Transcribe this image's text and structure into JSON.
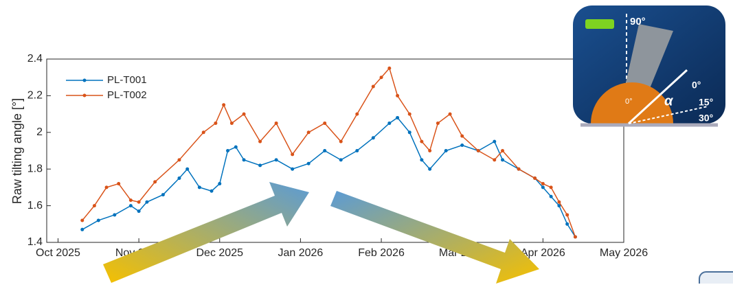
{
  "chart_data": {
    "type": "line",
    "ylabel": "Raw tilting angle [°]",
    "xlim": [
      -0.14,
      7
    ],
    "xticks": [
      {
        "value": 0,
        "label": "Oct 2025"
      },
      {
        "value": 1,
        "label": "Nov 2025"
      },
      {
        "value": 2,
        "label": "Dec 2025"
      },
      {
        "value": 3,
        "label": "Jan 2026"
      },
      {
        "value": 4,
        "label": "Feb 2026"
      },
      {
        "value": 5,
        "label": "Mar 2026"
      },
      {
        "value": 6,
        "label": "Apr 2026"
      },
      {
        "value": 7,
        "label": "May 2026"
      }
    ],
    "ylim": [
      1.4,
      2.4
    ],
    "yticks": [
      1.4,
      1.6,
      1.8,
      2,
      2.2,
      2.4
    ],
    "legend": "upper left",
    "series": [
      {
        "name": "PL-T001",
        "color": "#0072bd",
        "x": [
          0.3,
          0.5,
          0.7,
          0.9,
          1.0,
          1.1,
          1.3,
          1.5,
          1.6,
          1.75,
          1.9,
          2.0,
          2.1,
          2.2,
          2.3,
          2.5,
          2.7,
          2.9,
          3.1,
          3.3,
          3.5,
          3.7,
          3.9,
          4.1,
          4.2,
          4.35,
          4.5,
          4.6,
          4.8,
          5.0,
          5.2,
          5.4,
          5.5,
          5.7,
          5.9,
          6.0,
          6.1,
          6.2,
          6.3,
          6.4
        ],
        "values": [
          1.47,
          1.52,
          1.55,
          1.6,
          1.57,
          1.62,
          1.66,
          1.75,
          1.8,
          1.7,
          1.68,
          1.72,
          1.9,
          1.92,
          1.85,
          1.82,
          1.85,
          1.8,
          1.83,
          1.9,
          1.85,
          1.9,
          1.97,
          2.05,
          2.08,
          2.0,
          1.85,
          1.8,
          1.9,
          1.93,
          1.9,
          1.95,
          1.85,
          1.8,
          1.75,
          1.7,
          1.65,
          1.6,
          1.5,
          1.43
        ]
      },
      {
        "name": "PL-T002",
        "color": "#d95319",
        "x": [
          0.3,
          0.45,
          0.6,
          0.75,
          0.9,
          1.0,
          1.2,
          1.5,
          1.8,
          1.95,
          2.05,
          2.15,
          2.3,
          2.5,
          2.7,
          2.9,
          3.1,
          3.3,
          3.5,
          3.7,
          3.9,
          4.0,
          4.1,
          4.2,
          4.35,
          4.5,
          4.6,
          4.7,
          4.85,
          5.0,
          5.2,
          5.4,
          5.5,
          5.7,
          5.9,
          6.0,
          6.1,
          6.2,
          6.3,
          6.4
        ],
        "values": [
          1.52,
          1.6,
          1.7,
          1.72,
          1.63,
          1.62,
          1.73,
          1.85,
          2.0,
          2.05,
          2.15,
          2.05,
          2.1,
          1.95,
          2.05,
          1.88,
          2.0,
          2.05,
          1.95,
          2.1,
          2.25,
          2.3,
          2.35,
          2.2,
          2.1,
          1.95,
          1.9,
          2.05,
          2.1,
          1.98,
          1.9,
          1.85,
          1.9,
          1.8,
          1.75,
          1.72,
          1.7,
          1.62,
          1.55,
          1.43
        ]
      }
    ]
  },
  "icon": {
    "labels": [
      "90°",
      "0°",
      "α",
      "15°",
      "30°",
      "0°"
    ]
  }
}
